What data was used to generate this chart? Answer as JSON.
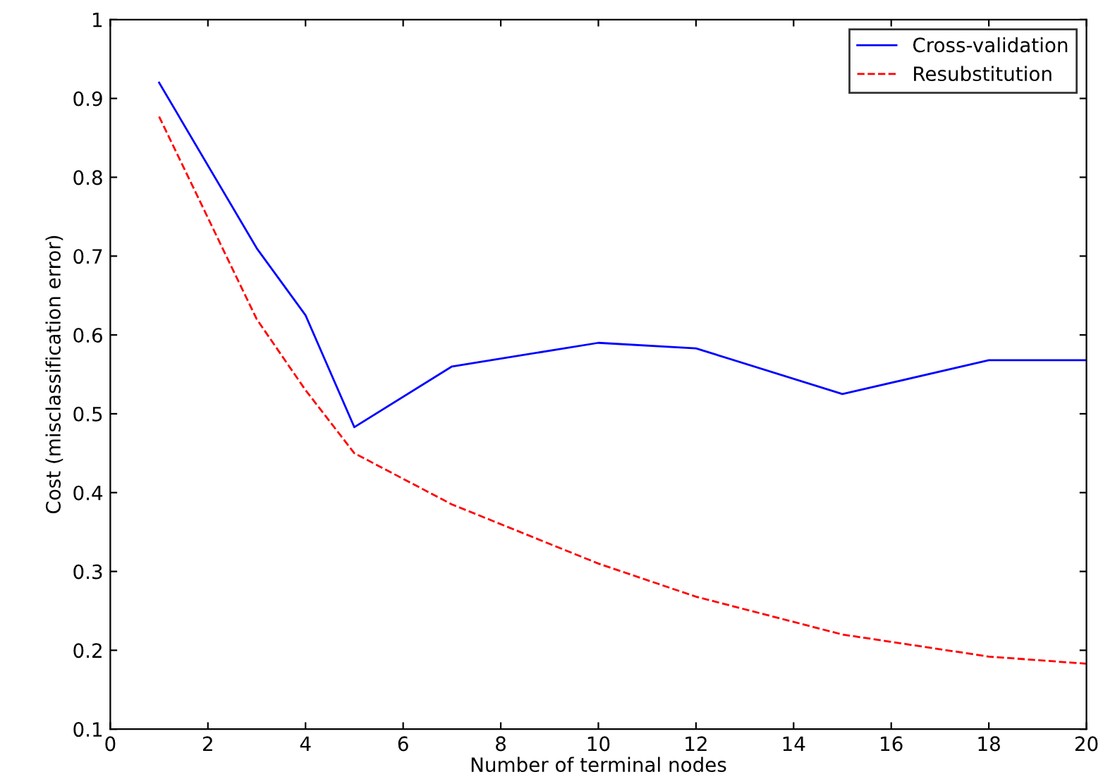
{
  "chart_data": {
    "type": "line",
    "xlabel": "Number of terminal nodes",
    "ylabel": "Cost (misclassification error)",
    "xlim": [
      0,
      20
    ],
    "xticks": [
      0,
      2,
      4,
      6,
      8,
      10,
      12,
      14,
      16,
      18,
      20
    ],
    "ylim": [
      0.1,
      1
    ],
    "yticks": [
      0.1,
      0.2,
      0.3,
      0.4,
      0.5,
      0.6,
      0.7,
      0.8,
      0.9,
      1
    ],
    "grid": false,
    "legend": "top right",
    "series": [
      {
        "name": "Cross-validation",
        "color": "#0000ff",
        "line_style": "solid",
        "x": [
          1,
          3,
          4,
          5,
          7,
          10,
          12,
          15,
          18,
          20
        ],
        "values": [
          0.92,
          0.71,
          0.625,
          0.483,
          0.56,
          0.59,
          0.583,
          0.525,
          0.568,
          0.568
        ]
      },
      {
        "name": "Resubstitution",
        "color": "#ff0000",
        "line_style": "dashed",
        "x": [
          1,
          3,
          4,
          5,
          7,
          10,
          12,
          15,
          18,
          20
        ],
        "values": [
          0.877,
          0.62,
          0.53,
          0.45,
          0.385,
          0.31,
          0.268,
          0.22,
          0.192,
          0.183
        ]
      }
    ]
  }
}
